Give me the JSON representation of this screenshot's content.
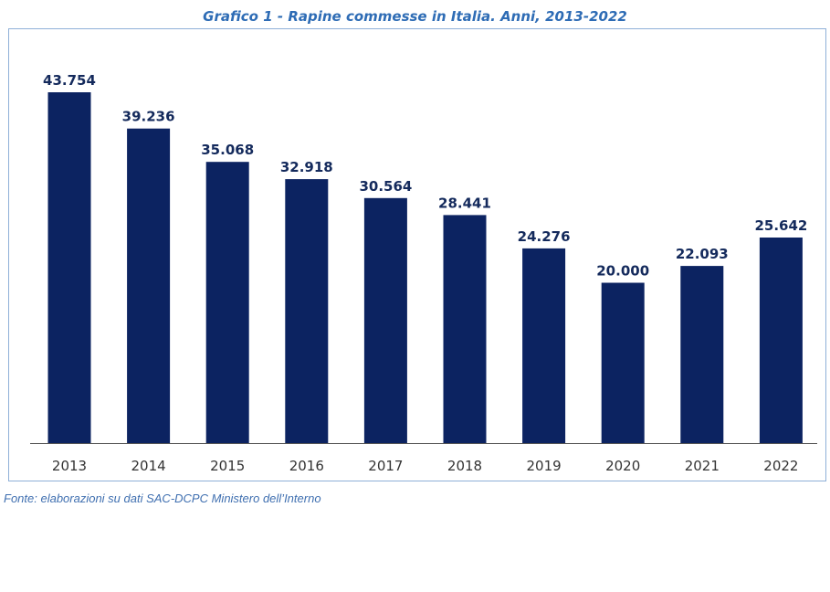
{
  "chart_data": {
    "type": "bar",
    "title": "Grafico 1 - Rapine commesse in Italia. Anni, 2013-2022",
    "categories": [
      "2013",
      "2014",
      "2015",
      "2016",
      "2017",
      "2018",
      "2019",
      "2020",
      "2021",
      "2022"
    ],
    "values": [
      43754,
      39236,
      35068,
      32918,
      30564,
      28441,
      24276,
      20000,
      22093,
      25642
    ],
    "value_labels": [
      "43.754",
      "39.236",
      "35.068",
      "32.918",
      "30.564",
      "28.441",
      "24.276",
      "20.000",
      "22.093",
      "25.642"
    ],
    "xlabel": "",
    "ylabel": "",
    "ylim": [
      0,
      43754
    ],
    "grid": false,
    "legend": "none",
    "bar_color": "#0c2361",
    "label_color": "#142a5c"
  },
  "source": "Fonte: elaborazioni su dati SAC-DCPC Ministero dell’Interno"
}
